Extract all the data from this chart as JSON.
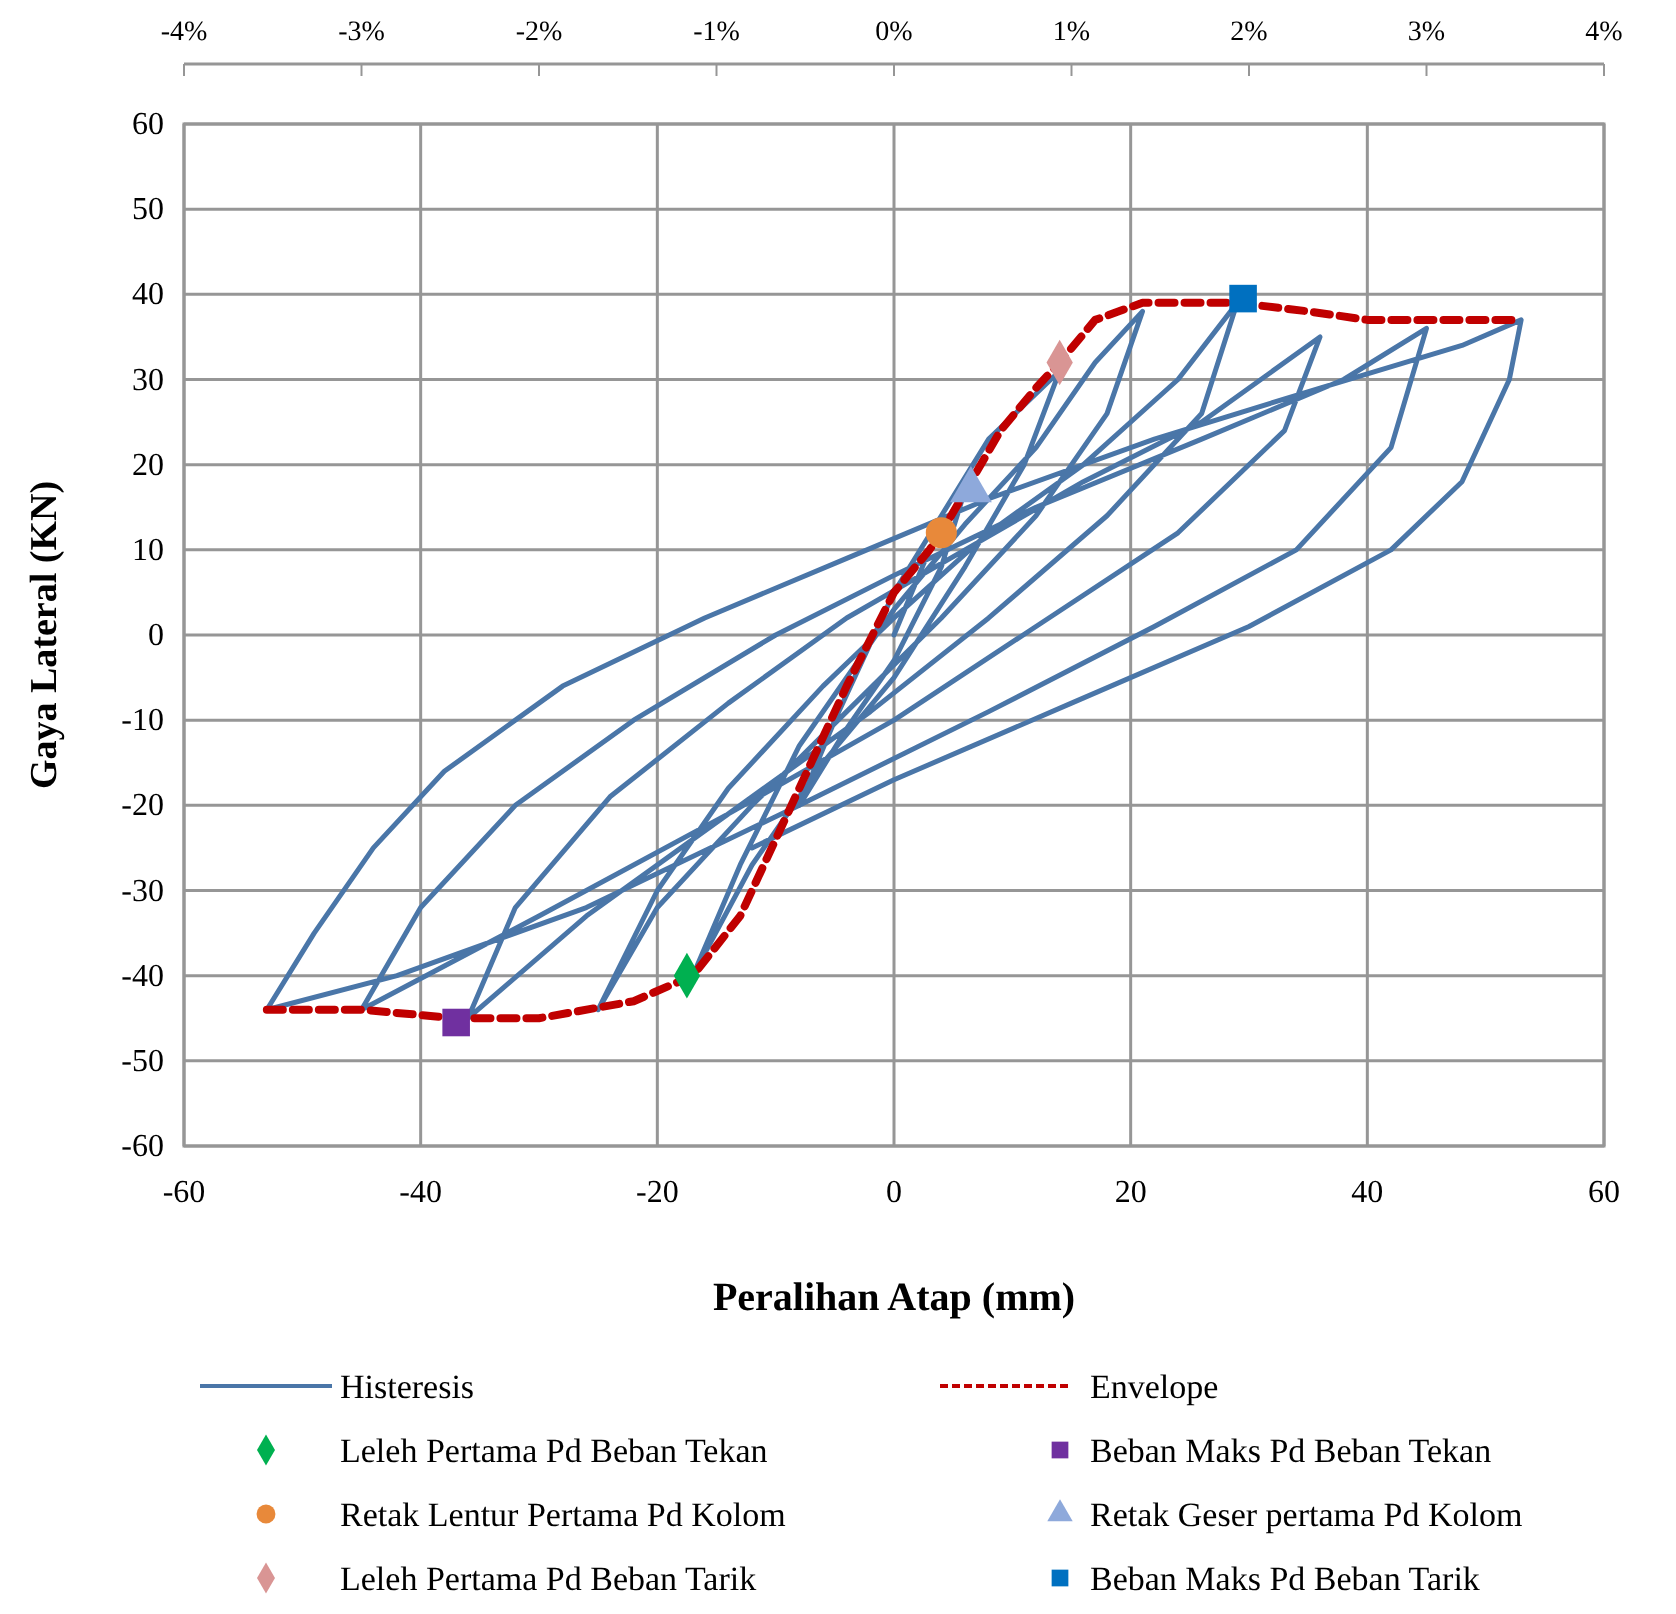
{
  "chart_data": {
    "type": "line",
    "xlabel": "Peralihan Atap (mm)",
    "ylabel": "Gaya Lateral (KN)",
    "xlim": [
      -60,
      60
    ],
    "xticks": [
      -60,
      -40,
      -20,
      0,
      20,
      40,
      60
    ],
    "ylim": [
      -60,
      60
    ],
    "yticks": [
      -60,
      -50,
      -40,
      -30,
      -20,
      -10,
      0,
      10,
      20,
      30,
      40,
      50,
      60
    ],
    "x2lim": [
      -4,
      4
    ],
    "x2ticks": [
      {
        "value": -4,
        "label": "-4%"
      },
      {
        "value": -3,
        "label": "-3%"
      },
      {
        "value": -2,
        "label": "-2%"
      },
      {
        "value": -1,
        "label": "-1%"
      },
      {
        "value": 0,
        "label": "0%"
      },
      {
        "value": 1,
        "label": "1%"
      },
      {
        "value": 2,
        "label": "2%"
      },
      {
        "value": 3,
        "label": "3%"
      },
      {
        "value": 4,
        "label": "4%"
      }
    ],
    "grid": true,
    "legend": "bottom",
    "series": [
      {
        "name": "Histeresis",
        "color": "#4a76a8",
        "marker": "none",
        "line_style": "solid",
        "x": [
          0,
          3,
          6,
          4,
          0,
          -4,
          -8,
          -5,
          -2,
          0,
          4,
          8,
          14,
          11,
          6,
          0,
          -6,
          -12,
          -17,
          -13,
          -8,
          -3,
          0,
          6,
          12,
          17,
          21,
          18,
          12,
          4,
          -4,
          -12,
          -20,
          -25,
          -20,
          -14,
          -6,
          0,
          8,
          16,
          24,
          29,
          26,
          18,
          8,
          -2,
          -14,
          -26,
          -36,
          -32,
          -24,
          -14,
          -4,
          6,
          16,
          26,
          36,
          33,
          24,
          12,
          0,
          -14,
          -30,
          -45,
          -40,
          -32,
          -22,
          -10,
          0,
          12,
          26,
          38,
          45,
          42,
          34,
          22,
          8,
          -8,
          -26,
          -42,
          -53,
          -49,
          -44,
          -38,
          -28,
          -16,
          -4,
          8,
          22,
          36,
          48,
          53,
          52,
          48,
          42,
          30,
          15,
          0,
          -12
        ],
        "values": [
          0,
          10,
          17,
          8,
          -3,
          -11,
          -20,
          -10,
          -1,
          5,
          14,
          23,
          31,
          20,
          8,
          -5,
          -15,
          -27,
          -40,
          -27,
          -13,
          -3,
          3,
          13,
          22,
          32,
          38,
          26,
          14,
          2,
          -9,
          -20,
          -32,
          -44,
          -30,
          -18,
          -6,
          2,
          12,
          20,
          30,
          39,
          26,
          14,
          2,
          -9,
          -21,
          -33,
          -45,
          -32,
          -19,
          -8,
          2,
          10,
          18,
          25,
          35,
          24,
          12,
          1,
          -10,
          -21,
          -33,
          -44,
          -32,
          -20,
          -10,
          0,
          7,
          15,
          23,
          30,
          36,
          22,
          10,
          1,
          -9,
          -20,
          -32,
          -40,
          -44,
          -35,
          -25,
          -16,
          -6,
          2,
          9,
          16,
          23,
          29,
          34,
          37,
          30,
          18,
          10,
          1,
          -8,
          -17,
          -25
        ]
      },
      {
        "name": "Envelope",
        "color": "#c00000",
        "marker": "none",
        "line_style": "dashed",
        "x": [
          -53,
          -45,
          -37,
          -30,
          -22,
          -17,
          -13,
          -10,
          -7,
          -4,
          0,
          3,
          4,
          9,
          12,
          14,
          17,
          21,
          29,
          35,
          40,
          45,
          53
        ],
        "values": [
          -44,
          -44,
          -45,
          -45,
          -43,
          -40,
          -33,
          -24,
          -15,
          -6,
          5,
          10,
          12,
          24,
          29,
          32,
          37,
          39,
          39,
          38,
          37,
          37,
          37
        ]
      },
      {
        "name": "Leleh Pertama Pd Beban Tekan",
        "type": "scatter",
        "color": "#00b050",
        "marker": "diamond",
        "x": [
          -17.5
        ],
        "values": [
          -40
        ]
      },
      {
        "name": "Beban Maks Pd Beban Tekan",
        "type": "scatter",
        "color": "#7030a0",
        "marker": "square",
        "x": [
          -37
        ],
        "values": [
          -45.5
        ]
      },
      {
        "name": "Retak Lentur Pertama Pd Kolom",
        "type": "scatter",
        "color": "#e8893a",
        "marker": "circle",
        "x": [
          4
        ],
        "values": [
          12
        ]
      },
      {
        "name": "Retak Geser pertama Pd Kolom",
        "type": "scatter",
        "color": "#8ea9db",
        "marker": "triangle",
        "x": [
          6.5
        ],
        "values": [
          17
        ]
      },
      {
        "name": "Leleh Pertama Pd Beban Tarik",
        "type": "scatter",
        "color": "#d99594",
        "marker": "diamond",
        "x": [
          14
        ],
        "values": [
          32
        ]
      },
      {
        "name": "Beban Maks Pd Beban Tarik",
        "type": "scatter",
        "color": "#0070c0",
        "marker": "square",
        "x": [
          29.5
        ],
        "values": [
          39.5
        ]
      }
    ]
  }
}
